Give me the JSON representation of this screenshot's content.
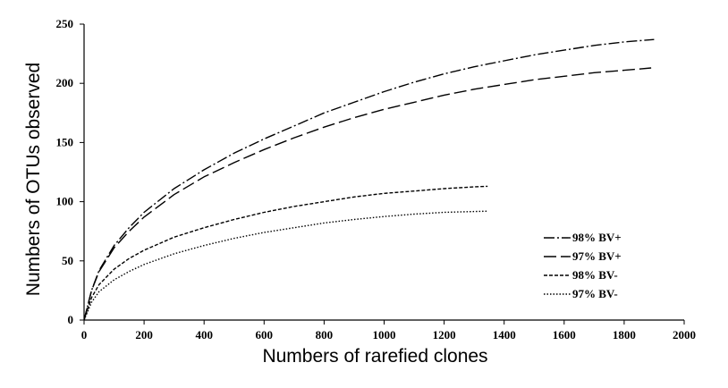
{
  "chart_data": {
    "type": "line",
    "title": "",
    "xlabel": "Numbers of rarefied clones",
    "ylabel": "Numbers of OTUs observed",
    "xlim": [
      0,
      2000
    ],
    "ylim": [
      0,
      250
    ],
    "xticks": [
      "0",
      "200",
      "400",
      "600",
      "800",
      "1000",
      "1200",
      "1400",
      "1600",
      "1800",
      "2000"
    ],
    "yticks": [
      "0",
      "50",
      "100",
      "150",
      "200",
      "250"
    ],
    "grid": false,
    "legend_position": "right",
    "series": [
      {
        "name": "98% BV+",
        "color": "#000000",
        "dash": "dash-dot",
        "points": [
          [
            0,
            0
          ],
          [
            25,
            25
          ],
          [
            50,
            42
          ],
          [
            100,
            63
          ],
          [
            150,
            78
          ],
          [
            200,
            91
          ],
          [
            300,
            111
          ],
          [
            400,
            127
          ],
          [
            500,
            141
          ],
          [
            600,
            153
          ],
          [
            700,
            164
          ],
          [
            800,
            175
          ],
          [
            900,
            184
          ],
          [
            1000,
            193
          ],
          [
            1100,
            201
          ],
          [
            1200,
            208
          ],
          [
            1300,
            214
          ],
          [
            1400,
            219
          ],
          [
            1500,
            224
          ],
          [
            1600,
            228
          ],
          [
            1700,
            232
          ],
          [
            1800,
            235
          ],
          [
            1900,
            237
          ]
        ]
      },
      {
        "name": "97% BV+",
        "color": "#000000",
        "dash": "long-dash",
        "points": [
          [
            0,
            0
          ],
          [
            25,
            25
          ],
          [
            50,
            41
          ],
          [
            100,
            61
          ],
          [
            150,
            75
          ],
          [
            200,
            87
          ],
          [
            300,
            106
          ],
          [
            400,
            121
          ],
          [
            500,
            133
          ],
          [
            600,
            144
          ],
          [
            700,
            154
          ],
          [
            800,
            163
          ],
          [
            900,
            171
          ],
          [
            1000,
            178
          ],
          [
            1100,
            184
          ],
          [
            1200,
            190
          ],
          [
            1300,
            195
          ],
          [
            1400,
            199
          ],
          [
            1500,
            203
          ],
          [
            1600,
            206
          ],
          [
            1700,
            209
          ],
          [
            1800,
            211
          ],
          [
            1890,
            213
          ]
        ]
      },
      {
        "name": "98% BV-",
        "color": "#000000",
        "dash": "short-dash",
        "points": [
          [
            0,
            0
          ],
          [
            25,
            19
          ],
          [
            50,
            30
          ],
          [
            100,
            43
          ],
          [
            150,
            52
          ],
          [
            200,
            59
          ],
          [
            300,
            70
          ],
          [
            400,
            78
          ],
          [
            500,
            85
          ],
          [
            600,
            91
          ],
          [
            700,
            96
          ],
          [
            800,
            100
          ],
          [
            900,
            104
          ],
          [
            1000,
            107
          ],
          [
            1100,
            109
          ],
          [
            1200,
            111
          ],
          [
            1300,
            112.5
          ],
          [
            1345,
            113
          ]
        ]
      },
      {
        "name": "97% BV-",
        "color": "#000000",
        "dash": "dotted",
        "points": [
          [
            0,
            0
          ],
          [
            25,
            15
          ],
          [
            50,
            24
          ],
          [
            100,
            34
          ],
          [
            150,
            41
          ],
          [
            200,
            47
          ],
          [
            300,
            56
          ],
          [
            400,
            63
          ],
          [
            500,
            69
          ],
          [
            600,
            74
          ],
          [
            700,
            78
          ],
          [
            800,
            82
          ],
          [
            900,
            85
          ],
          [
            1000,
            87.5
          ],
          [
            1100,
            89.5
          ],
          [
            1200,
            91
          ],
          [
            1345,
            92
          ]
        ]
      }
    ]
  }
}
